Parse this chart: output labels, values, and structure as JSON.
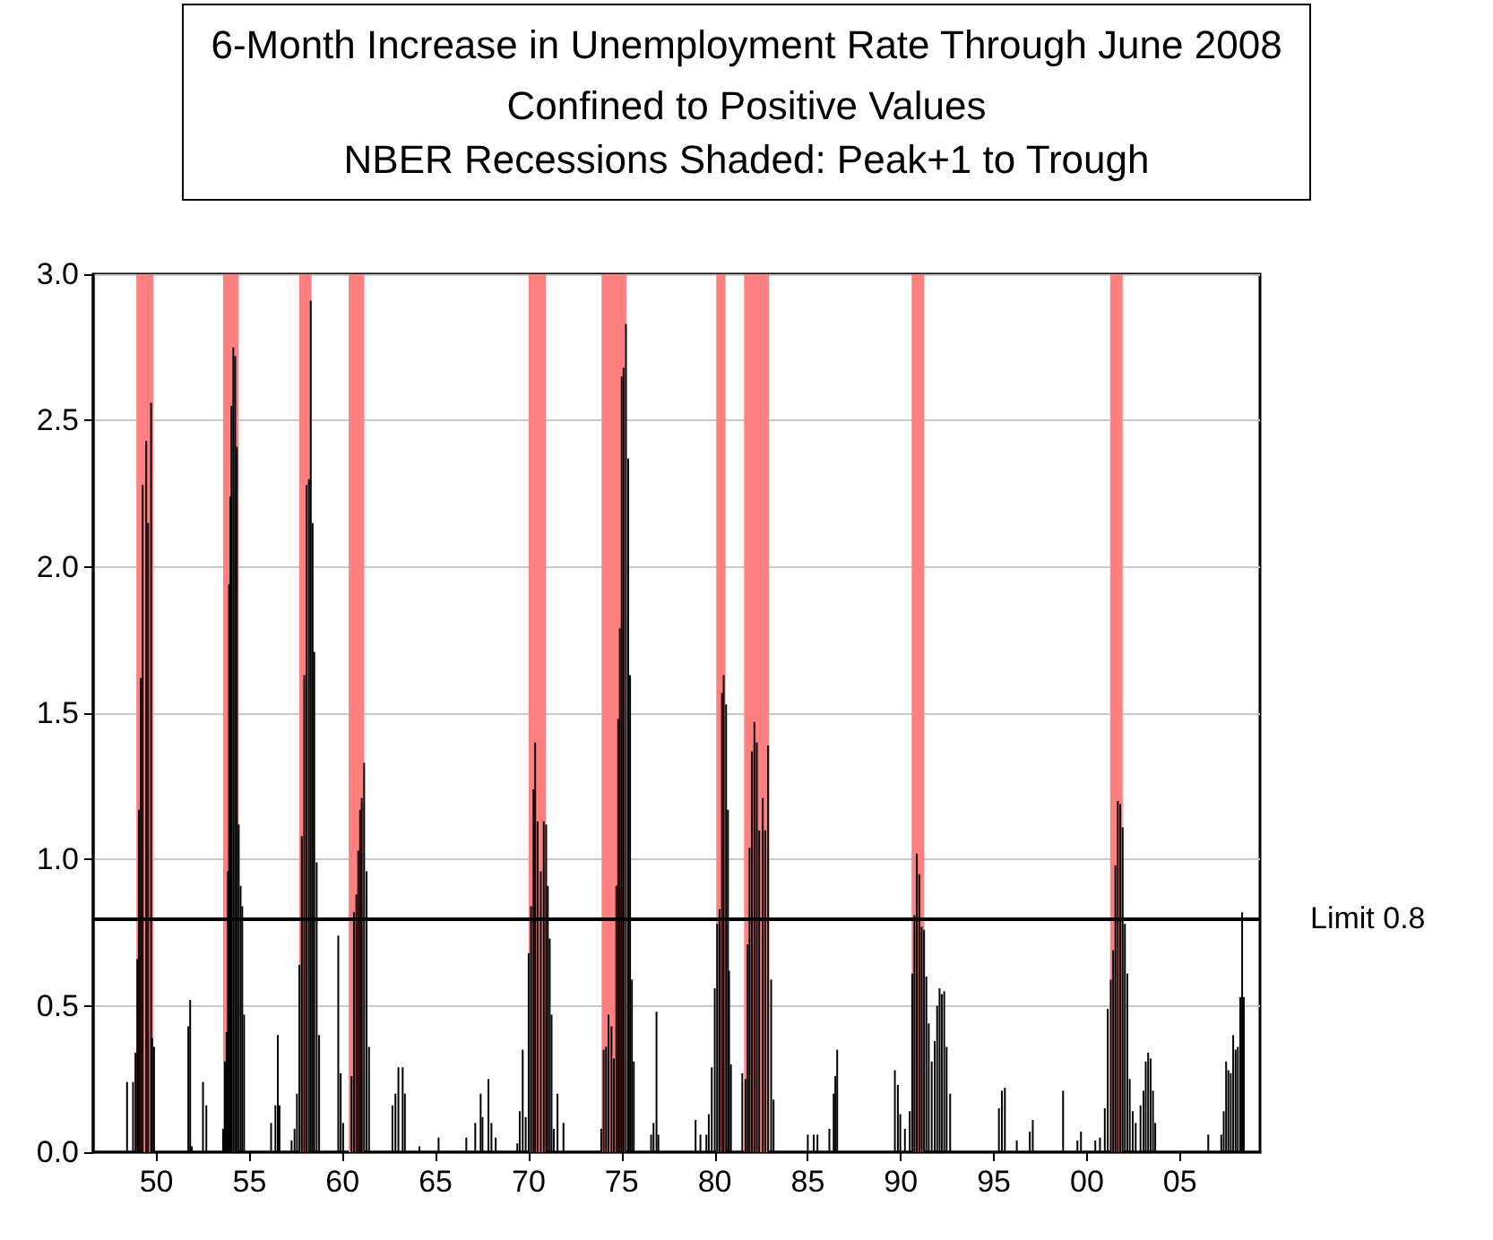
{
  "chart_data": {
    "type": "bar",
    "title": "6-Month Increase in Unemployment Rate Through June 2008",
    "subtitle": "Confined to Positive Values\nNBER Recessions Shaded: Peak+1 to Trough",
    "x": [
      1948.42,
      1948.74,
      1948.87,
      1948.97,
      1949.06,
      1949.16,
      1949.26,
      1949.45,
      1949.55,
      1949.71,
      1949.77,
      1949.87,
      1951.71,
      1951.81,
      1951.9,
      1952.5,
      1952.68,
      1953.58,
      1953.68,
      1953.77,
      1953.84,
      1953.9,
      1953.97,
      1954.03,
      1954.13,
      1954.23,
      1954.32,
      1954.42,
      1954.52,
      1954.61,
      1954.71,
      1956.16,
      1956.39,
      1956.52,
      1956.61,
      1957.26,
      1957.42,
      1957.55,
      1957.68,
      1957.81,
      1957.94,
      1958.06,
      1958.19,
      1958.29,
      1958.39,
      1958.48,
      1958.61,
      1958.74,
      1959.77,
      1959.9,
      1960.03,
      1960.48,
      1960.61,
      1960.74,
      1960.84,
      1960.94,
      1961.03,
      1961.16,
      1961.29,
      1961.42,
      1962.68,
      1962.84,
      1963.0,
      1963.23,
      1963.35,
      1964.13,
      1965.16,
      1966.65,
      1967.13,
      1967.42,
      1967.52,
      1967.84,
      1968.0,
      1968.23,
      1969.39,
      1969.52,
      1969.68,
      1969.84,
      1970.0,
      1970.13,
      1970.26,
      1970.35,
      1970.48,
      1970.65,
      1970.81,
      1970.94,
      1971.03,
      1971.13,
      1971.23,
      1971.35,
      1971.55,
      1971.87,
      1973.9,
      1974.03,
      1974.16,
      1974.29,
      1974.45,
      1974.58,
      1974.71,
      1974.81,
      1974.9,
      1975.0,
      1975.1,
      1975.23,
      1975.35,
      1975.45,
      1975.55,
      1975.65,
      1976.58,
      1976.71,
      1976.87,
      1976.97,
      1978.97,
      1979.23,
      1979.55,
      1979.68,
      1979.84,
      1980.0,
      1980.13,
      1980.26,
      1980.39,
      1980.48,
      1980.61,
      1980.71,
      1980.77,
      1980.87,
      1981.48,
      1981.65,
      1981.77,
      1981.87,
      1982.0,
      1982.13,
      1982.26,
      1982.39,
      1982.58,
      1982.71,
      1982.87,
      1983.03,
      1983.16,
      1985.0,
      1985.32,
      1985.52,
      1986.16,
      1986.39,
      1986.48,
      1986.58,
      1989.68,
      1989.84,
      1989.97,
      1990.22,
      1990.48,
      1990.61,
      1990.73,
      1990.86,
      1990.99,
      1991.12,
      1991.25,
      1991.37,
      1991.5,
      1991.66,
      1991.82,
      1991.95,
      1992.08,
      1992.2,
      1992.33,
      1992.46,
      1992.65,
      1995.27,
      1995.43,
      1995.59,
      1996.23,
      1996.93,
      1997.09,
      1998.72,
      1999.49,
      1999.68,
      2000.45,
      2000.7,
      2000.96,
      2001.12,
      2001.28,
      2001.41,
      2001.53,
      2001.66,
      2001.79,
      2001.92,
      2002.04,
      2002.17,
      2002.3,
      2002.46,
      2002.62,
      2002.88,
      2003.04,
      2003.16,
      2003.29,
      2003.42,
      2003.55,
      2003.67,
      2006.52,
      2007.22,
      2007.35,
      2007.48,
      2007.6,
      2007.73,
      2007.86,
      2007.99,
      2008.11,
      2008.24,
      2008.34,
      2008.43
    ],
    "values": [
      0.24,
      0.24,
      0.34,
      0.66,
      1.17,
      1.62,
      2.28,
      2.43,
      2.15,
      2.56,
      0.39,
      0.36,
      0.43,
      0.52,
      0.02,
      0.24,
      0.16,
      0.08,
      0.31,
      0.41,
      0.96,
      1.94,
      2.24,
      2.55,
      2.75,
      2.72,
      2.41,
      1.12,
      0.91,
      0.84,
      0.47,
      0.1,
      0.16,
      0.4,
      0.16,
      0.04,
      0.08,
      0.2,
      0.64,
      1.08,
      1.63,
      2.28,
      2.3,
      2.91,
      2.15,
      1.71,
      0.99,
      0.4,
      0.74,
      0.27,
      0.1,
      0.26,
      0.82,
      0.88,
      1.03,
      1.17,
      1.21,
      1.33,
      0.96,
      0.36,
      0.16,
      0.2,
      0.29,
      0.29,
      0.2,
      0.02,
      0.05,
      0.05,
      0.1,
      0.2,
      0.12,
      0.25,
      0.1,
      0.05,
      0.03,
      0.14,
      0.35,
      0.12,
      0.68,
      0.84,
      1.24,
      1.4,
      1.13,
      0.96,
      1.13,
      1.12,
      0.91,
      0.73,
      0.47,
      0.08,
      0.2,
      0.1,
      0.08,
      0.35,
      0.36,
      0.47,
      0.43,
      0.32,
      0.91,
      1.48,
      1.79,
      2.65,
      2.68,
      2.83,
      2.37,
      1.63,
      0.59,
      0.31,
      0.06,
      0.1,
      0.48,
      0.06,
      0.11,
      0.06,
      0.06,
      0.13,
      0.29,
      0.56,
      0.78,
      0.83,
      1.57,
      1.63,
      1.53,
      1.17,
      0.62,
      0.3,
      0.27,
      0.25,
      0.71,
      1.04,
      1.37,
      1.47,
      1.4,
      1.1,
      1.21,
      1.1,
      1.39,
      0.59,
      0.18,
      0.06,
      0.06,
      0.06,
      0.08,
      0.2,
      0.26,
      0.35,
      0.28,
      0.23,
      0.13,
      0.08,
      0.14,
      0.61,
      0.81,
      1.02,
      0.95,
      0.77,
      0.76,
      0.6,
      0.44,
      0.31,
      0.38,
      0.5,
      0.56,
      0.54,
      0.55,
      0.36,
      0.2,
      0.15,
      0.21,
      0.22,
      0.04,
      0.07,
      0.11,
      0.21,
      0.04,
      0.07,
      0.04,
      0.05,
      0.15,
      0.49,
      0.59,
      0.69,
      0.98,
      1.2,
      1.19,
      1.11,
      0.78,
      0.61,
      0.25,
      0.14,
      0.1,
      0.16,
      0.21,
      0.31,
      0.34,
      0.32,
      0.21,
      0.1,
      0.06,
      0.06,
      0.14,
      0.31,
      0.28,
      0.27,
      0.4,
      0.35,
      0.36,
      0.53,
      0.82,
      0.53
    ],
    "color": "#000000",
    "xlim": [
      1946.6,
      2009.3
    ],
    "xticks": [
      {
        "value": 1950,
        "label": "50"
      },
      {
        "value": 1955,
        "label": "55"
      },
      {
        "value": 1960,
        "label": "60"
      },
      {
        "value": 1965,
        "label": "65"
      },
      {
        "value": 1970,
        "label": "70"
      },
      {
        "value": 1975,
        "label": "75"
      },
      {
        "value": 1980,
        "label": "80"
      },
      {
        "value": 1985,
        "label": "85"
      },
      {
        "value": 1990,
        "label": "90"
      },
      {
        "value": 1995,
        "label": "95"
      },
      {
        "value": 2000,
        "label": "00"
      },
      {
        "value": 2005,
        "label": "05"
      }
    ],
    "ylim": [
      0,
      3
    ],
    "yticks": [
      {
        "value": 0,
        "label": "0.0"
      },
      {
        "value": 0.5,
        "label": "0.5"
      },
      {
        "value": 1,
        "label": "1.0"
      },
      {
        "value": 1.5,
        "label": "1.5"
      },
      {
        "value": 2,
        "label": "2.0"
      },
      {
        "value": 2.5,
        "label": "2.5"
      },
      {
        "value": 3,
        "label": "3.0"
      }
    ],
    "grid": "y",
    "ref_lines": [
      {
        "axis": "y",
        "value": 0.8,
        "label": "Limit 0.8",
        "color": "#000000"
      }
    ],
    "bands": [
      {
        "axis": "x",
        "from": 1948.92,
        "to": 1949.83,
        "color": "#ff8080"
      },
      {
        "axis": "x",
        "from": 1953.58,
        "to": 1954.42,
        "color": "#ff8080"
      },
      {
        "axis": "x",
        "from": 1957.67,
        "to": 1958.33,
        "color": "#ff8080"
      },
      {
        "axis": "x",
        "from": 1960.33,
        "to": 1961.17,
        "color": "#ff8080"
      },
      {
        "axis": "x",
        "from": 1970.0,
        "to": 1970.92,
        "color": "#ff8080"
      },
      {
        "axis": "x",
        "from": 1973.92,
        "to": 1975.25,
        "color": "#ff8080"
      },
      {
        "axis": "x",
        "from": 1980.08,
        "to": 1980.58,
        "color": "#ff8080"
      },
      {
        "axis": "x",
        "from": 1981.58,
        "to": 1982.92,
        "color": "#ff8080"
      },
      {
        "axis": "x",
        "from": 1990.58,
        "to": 1991.25,
        "color": "#ff8080"
      },
      {
        "axis": "x",
        "from": 2001.25,
        "to": 2001.92,
        "color": "#ff8080"
      }
    ]
  }
}
